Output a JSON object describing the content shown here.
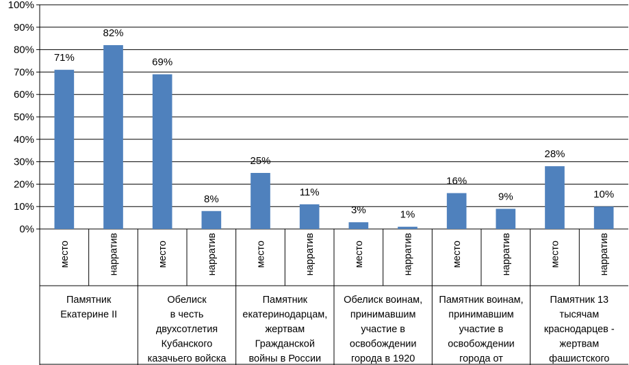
{
  "chart_data": {
    "type": "bar",
    "title": "",
    "xlabel": "",
    "ylabel": "",
    "ylim": [
      0,
      100
    ],
    "yticks": [
      0,
      10,
      20,
      30,
      40,
      50,
      60,
      70,
      80,
      90,
      100
    ],
    "ytick_labels": [
      "0%",
      "10%",
      "20%",
      "30%",
      "40%",
      "50%",
      "60%",
      "70%",
      "80%",
      "90%",
      "100%"
    ],
    "grid": true,
    "bar_color": "#4f81bd",
    "subcategories": [
      "место",
      "нарратив"
    ],
    "groups": [
      {
        "lines": [
          "Памятник",
          "Екатерине II"
        ],
        "values": [
          71,
          82
        ],
        "value_labels": [
          "71%",
          "82%"
        ]
      },
      {
        "lines": [
          "Обелиск",
          "в честь",
          "двухсотлетия",
          "Кубанского",
          "казачьего войска"
        ],
        "values": [
          69,
          8
        ],
        "value_labels": [
          "69%",
          "8%"
        ]
      },
      {
        "lines": [
          "Памятник",
          "екатеринодарцам,",
          "жертвам",
          "Гражданской",
          "войны в России"
        ],
        "values": [
          25,
          11
        ],
        "value_labels": [
          "25%",
          "11%"
        ]
      },
      {
        "lines": [
          "Обелиск воинам,",
          "принимавшим",
          "участие в",
          "освобождении",
          "города в 1920"
        ],
        "values": [
          3,
          1
        ],
        "value_labels": [
          "3%",
          "1%"
        ]
      },
      {
        "lines": [
          "Памятник воинам,",
          "принимавшим",
          "участие в",
          "освобождении",
          "города от"
        ],
        "values": [
          16,
          9
        ],
        "value_labels": [
          "16%",
          "9%"
        ]
      },
      {
        "lines": [
          "Памятник 13",
          "тысячам",
          "краснодарцев -",
          "жертвам",
          "фашистского"
        ],
        "values": [
          28,
          10
        ],
        "value_labels": [
          "28%",
          "10%"
        ]
      }
    ]
  }
}
